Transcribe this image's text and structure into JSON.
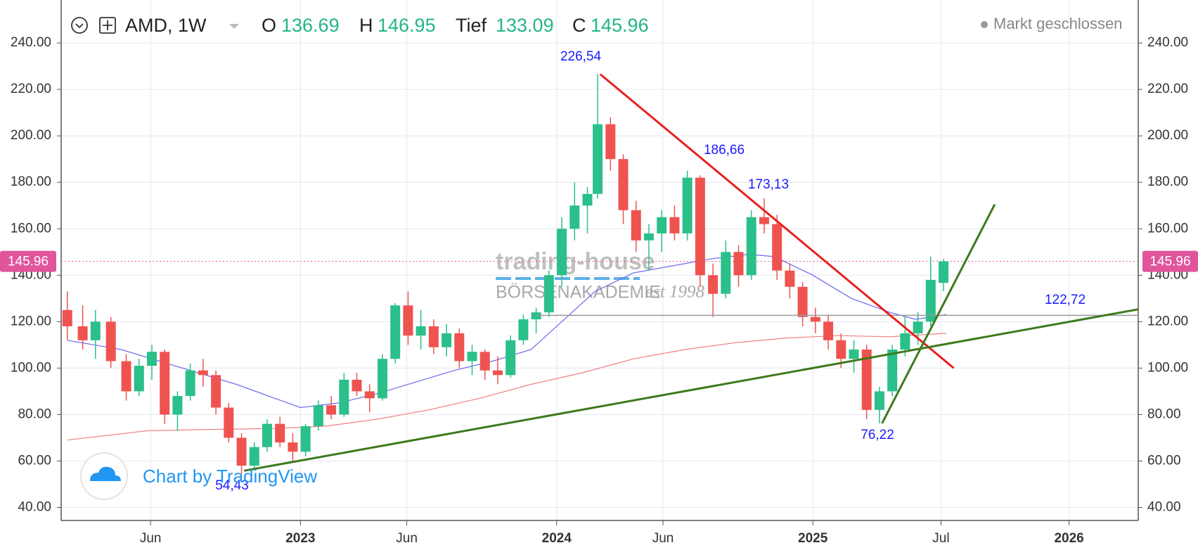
{
  "header": {
    "symbol": "AMD, 1W",
    "o_label": "O",
    "open": 136.69,
    "h_label": "H",
    "high": 146.95,
    "l_label": "Tief",
    "low": 133.09,
    "c_label": "C",
    "close": 145.96,
    "status": "Markt geschlossen"
  },
  "watermark": {
    "brand": "trading-house",
    "sub": "BÖRSENAKADEMIE",
    "since": "est 1998",
    "credit": "Chart by TradingView"
  },
  "chart_data": {
    "type": "candlestick",
    "up_color": "#2bbf8a",
    "down_color": "#ef5350",
    "grid": true,
    "x": [
      2022.09,
      2022.15,
      2022.2,
      2022.26,
      2022.32,
      2022.37,
      2022.42,
      2022.47,
      2022.52,
      2022.57,
      2022.62,
      2022.67,
      2022.72,
      2022.77,
      2022.82,
      2022.87,
      2022.92,
      2022.97,
      2023.02,
      2023.07,
      2023.12,
      2023.17,
      2023.22,
      2023.27,
      2023.32,
      2023.37,
      2023.42,
      2023.47,
      2023.52,
      2023.57,
      2023.62,
      2023.67,
      2023.72,
      2023.77,
      2023.82,
      2023.87,
      2023.92,
      2023.97,
      2024.02,
      2024.07,
      2024.12,
      2024.16,
      2024.21,
      2024.26,
      2024.31,
      2024.36,
      2024.41,
      2024.46,
      2024.51,
      2024.56,
      2024.61,
      2024.66,
      2024.71,
      2024.76,
      2024.81,
      2024.86,
      2024.91,
      2024.96,
      2025.01,
      2025.06,
      2025.11,
      2025.16,
      2025.21,
      2025.26,
      2025.31,
      2025.36,
      2025.41,
      2025.46,
      2025.51
    ],
    "open": [
      125,
      118,
      112,
      120,
      103,
      90,
      101,
      107,
      80,
      88,
      99,
      97,
      83,
      70,
      58,
      66,
      76,
      68,
      64,
      75,
      84,
      80,
      95,
      90,
      87,
      104,
      127,
      114,
      118,
      109,
      115,
      103,
      107,
      99,
      97,
      112,
      121,
      124,
      140,
      160,
      170,
      175,
      205,
      190,
      168,
      155,
      158,
      165,
      158,
      182,
      140,
      132,
      150,
      140,
      165,
      162,
      142,
      135,
      122,
      120,
      112,
      104,
      108,
      82,
      90,
      108,
      115,
      120,
      136.69
    ],
    "high": [
      133,
      127,
      125,
      122,
      106,
      104,
      110,
      108,
      90,
      102,
      104,
      99,
      85,
      72,
      68,
      78,
      79,
      72,
      76,
      86,
      88,
      98,
      98,
      93,
      106,
      128,
      133,
      125,
      121,
      119,
      117,
      110,
      108,
      105,
      114,
      123,
      126,
      142,
      165,
      180,
      178,
      226.54,
      208,
      192,
      172,
      162,
      168,
      170,
      185,
      183,
      145,
      155,
      153,
      168,
      173.13,
      166,
      145,
      137,
      126,
      123,
      115,
      112,
      110,
      92,
      110,
      122,
      124,
      148,
      146.95
    ],
    "low": [
      112,
      108,
      104,
      100,
      86,
      88,
      95,
      76,
      73,
      86,
      92,
      80,
      68,
      54.43,
      56,
      64,
      66,
      60,
      62,
      73,
      78,
      79,
      88,
      81,
      86,
      102,
      110,
      108,
      106,
      105,
      100,
      97,
      95,
      93,
      96,
      110,
      115,
      122,
      135,
      155,
      158,
      173,
      185,
      162,
      150,
      142,
      150,
      155,
      155,
      135,
      122,
      130,
      135,
      138,
      158,
      138,
      130,
      118,
      115,
      108,
      100,
      98,
      78,
      76.22,
      88,
      105,
      110,
      118,
      133.09
    ],
    "close": [
      118,
      112,
      120,
      103,
      90,
      101,
      107,
      80,
      88,
      99,
      97,
      83,
      70,
      58,
      66,
      76,
      68,
      64,
      75,
      84,
      80,
      95,
      90,
      87,
      104,
      127,
      114,
      118,
      109,
      115,
      103,
      107,
      99,
      97,
      112,
      121,
      124,
      140,
      160,
      170,
      175,
      205,
      190,
      168,
      155,
      158,
      165,
      158,
      182,
      140,
      132,
      150,
      140,
      165,
      162,
      142,
      135,
      122,
      120,
      112,
      104,
      108,
      82,
      90,
      108,
      115,
      120,
      138,
      145.96
    ],
    "series": [
      {
        "color": "#6b6bf0",
        "x": [
          2022.09,
          2022.3,
          2022.45,
          2022.6,
          2022.75,
          2022.9,
          2023.0,
          2023.15,
          2023.3,
          2023.45,
          2023.6,
          2023.75,
          2023.9,
          2024.0,
          2024.15,
          2024.3,
          2024.45,
          2024.6,
          2024.75,
          2024.85,
          2025.0,
          2025.15,
          2025.3,
          2025.4,
          2025.52
        ],
        "values": [
          112,
          108,
          103,
          98,
          93,
          87,
          83,
          85,
          89,
          94,
          99,
          103,
          108,
          118,
          133,
          141,
          144,
          147,
          149,
          148,
          140,
          130,
          124,
          121,
          123
        ]
      },
      {
        "color": "#f08080",
        "x": [
          2022.09,
          2022.4,
          2022.6,
          2022.9,
          2023.1,
          2023.3,
          2023.5,
          2023.7,
          2023.9,
          2024.1,
          2024.3,
          2024.5,
          2024.7,
          2024.9,
          2025.1,
          2025.3,
          2025.52
        ],
        "values": [
          69,
          73,
          73.5,
          74,
          75,
          78,
          82,
          87,
          93,
          98,
          104,
          108,
          111,
          113,
          114,
          113.5,
          115
        ]
      }
    ],
    "lines": [
      {
        "color": "#999999",
        "x": [
          2023.92,
          2026.27
        ],
        "values": [
          122.72,
          122.72
        ]
      },
      {
        "color": "#e8201c",
        "x": [
          2024.17,
          2025.55
        ],
        "values": [
          226.54,
          100
        ]
      },
      {
        "color": "#3d7a1c",
        "x": [
          2022.78,
          2026.27
        ],
        "values": [
          55.8,
          125.3
        ]
      },
      {
        "color": "#3d7a1c",
        "x": [
          2025.27,
          2025.71
        ],
        "values": [
          76.22,
          170.5
        ]
      }
    ],
    "annotations": [
      "226,54",
      "186,66",
      "173,13",
      "76,22",
      "54,43",
      "122,72"
    ],
    "xlim": [
      2022.066,
      2026.27
    ],
    "xticks": [
      {
        "value": 2022.415,
        "label": "Jun"
      },
      2023,
      {
        "value": 2023.415,
        "label": "Jun"
      },
      2024,
      {
        "value": 2024.415,
        "label": "Jun"
      },
      2025,
      {
        "value": 2025.5,
        "label": "Jul"
      },
      2026
    ],
    "ylim": [
      34.4,
      258.5
    ],
    "yticks": [
      {
        "value": 40,
        "label": "40.00"
      },
      {
        "value": 60,
        "label": "60.00"
      },
      {
        "value": 80,
        "label": "80.00"
      },
      {
        "value": 100,
        "label": "100.00"
      },
      {
        "value": 120,
        "label": "120.00"
      },
      {
        "value": 140,
        "label": "140.00"
      },
      {
        "value": 160,
        "label": "160.00"
      },
      {
        "value": 180,
        "label": "180.00"
      },
      {
        "value": 200,
        "label": "200.00"
      },
      {
        "value": 220,
        "label": "220.00"
      },
      {
        "value": 240,
        "label": "240.00"
      }
    ]
  }
}
